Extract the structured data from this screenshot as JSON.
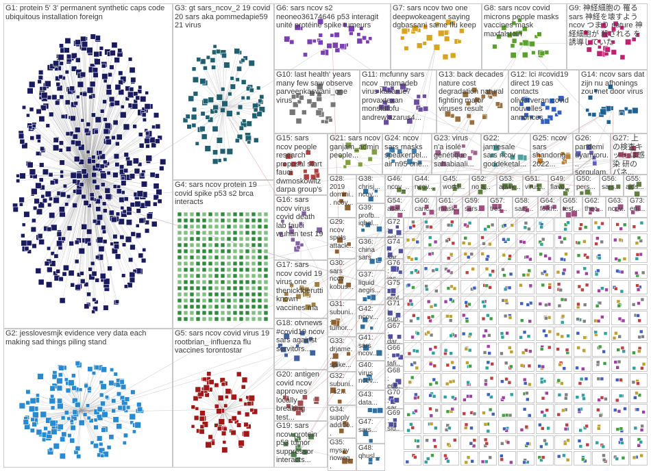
{
  "groups": [
    {
      "label": "G1: protein 5' 3' permanent synthetic caps code ubiquitous installation foreign"
    },
    {
      "label": "G3: gt sars_ncov_2 19 covid 20 sars aka pommedapie59 21 virus"
    },
    {
      "label": "G6: sars ncov s2 neoneo36174646 p53 interagit unité protéine spike tumeurs"
    },
    {
      "label": "G7: sars ncov two one deepwokeagent saying dgbassani same flu keep"
    },
    {
      "label": "G8: sars ncov covid microns people masks vaccines mask maxfalstein"
    },
    {
      "label": "G9: 神経細胞の 罹る sars 神経を壊すよう ncov つまり nature 神経細胞が 殺される を誘導していた"
    },
    {
      "label": "G10: last health' years many few saw observe parveenkaswani_one virus"
    },
    {
      "label": "G11: mcfunny sars ncov _mamadeb virus katlarue7 provaxtexan monstatofu andrewlazarus4..."
    },
    {
      "label": "G13: back decades nature cost degradation natural fighting major viruses result"
    },
    {
      "label": "G12: lci #covid19 direct 19 cas contacts olivierveran covid nouvelles annonces"
    },
    {
      "label": "G14: ncov sars dat zijn nu afhonings zou met door virus"
    },
    {
      "label": "G15: sars ncov people research proposal start fauci dwmoskowitz darpa group's"
    },
    {
      "label": "G21: sars ncov ganjam_admin people..."
    },
    {
      "label": "G24: ncov sars masks speakerpel... air n95 one..."
    },
    {
      "label": "G23: virus n'a isolé génétique sahabiaali..."
    },
    {
      "label": "G22: jamiesale sars ncov goddeketal..."
    },
    {
      "label": "G25: ncov sars shandong 2022..."
    },
    {
      "label": "G26: pandemi uyarıyoru... sorgulam..."
    },
    {
      "label": "G27: 上の検査キット は感染 研の パネ..."
    },
    {
      "label": "G4: sars ncov protein 19 covid spike p53 s2 brca interacts"
    },
    {
      "label": "G16: sars ncov virus covid death lab fauci wuhan test 19"
    },
    {
      "label": "G17: sars ncov covid 19 virus one thenickfoerutti known vaccines ma"
    },
    {
      "label": "G18: otvnews #covid19 ncov sars against servitors..."
    },
    {
      "label": "G20: antigen covid ncov approves locally breaking test..."
    },
    {
      "label": "G19: sars ncov protein p53 tumor suppressor interacts..."
    },
    {
      "label": "G2: jesslovesmjk evidence very data each making sad things piling stand"
    },
    {
      "label": "G5: sars ncov covid virus 19 rootbrian_ influenza flu vaccines torontostar"
    },
    {
      "label": "G28: 2019 domini... ncov..."
    },
    {
      "label": "G29: ncov spots attack..."
    },
    {
      "label": "G30: sars ncov kobus..."
    },
    {
      "label": "G31: subuni... tumor..."
    },
    {
      "label": "G33: drjame... spike..."
    },
    {
      "label": "G32: subuni... s2..."
    },
    {
      "label": "G34: supply additio..."
    },
    {
      "label": "G35: myszy noweg..."
    },
    {
      "label": "G38: chrisj... ncov..."
    },
    {
      "label": "G39: profb... iqbal..."
    },
    {
      "label": "G36: china sars..."
    },
    {
      "label": "G37: liquid aegis..."
    },
    {
      "label": "G42: ncov..."
    },
    {
      "label": "G41: sars ncov..."
    },
    {
      "label": "G40: virus ncov..."
    },
    {
      "label": "G43: data..."
    },
    {
      "label": "G47: sars..."
    },
    {
      "label": "G48: qhusl..."
    },
    {
      "label": "G46: ncov_..."
    },
    {
      "label": "G44: ncov..."
    },
    {
      "label": "G45: world..."
    },
    {
      "label": "G52: no a..."
    },
    {
      "label": "G53: apwk..."
    },
    {
      "label": "G51: virus..."
    },
    {
      "label": "G49: flavo..."
    },
    {
      "label": "G50: pers..."
    },
    {
      "label": "G56: sars..."
    },
    {
      "label": "G55: aids..."
    },
    {
      "label": "G54: asal..."
    },
    {
      "label": "G60: canc..."
    },
    {
      "label": "G61: mask..."
    },
    {
      "label": "G59: sars..."
    },
    {
      "label": "G57: tres..."
    },
    {
      "label": "G58: sars..."
    },
    {
      "label": "G64: folkh..."
    },
    {
      "label": "G65: test..."
    },
    {
      "label": "G62: thec..."
    },
    {
      "label": "G63: ncov..."
    },
    {
      "label": "G73: em..."
    },
    {
      "label": "G72: est..."
    },
    {
      "label": "G74: sar..."
    },
    {
      "label": "G76: jac..."
    },
    {
      "label": "G75: prof..."
    },
    {
      "label": "G71: sup..."
    },
    {
      "label": "G67: dar..."
    },
    {
      "label": "G66: tafi..."
    },
    {
      "label": "G68: eur..."
    },
    {
      "label": "G70: sar..."
    },
    {
      "label": "G69: sid..."
    }
  ]
}
